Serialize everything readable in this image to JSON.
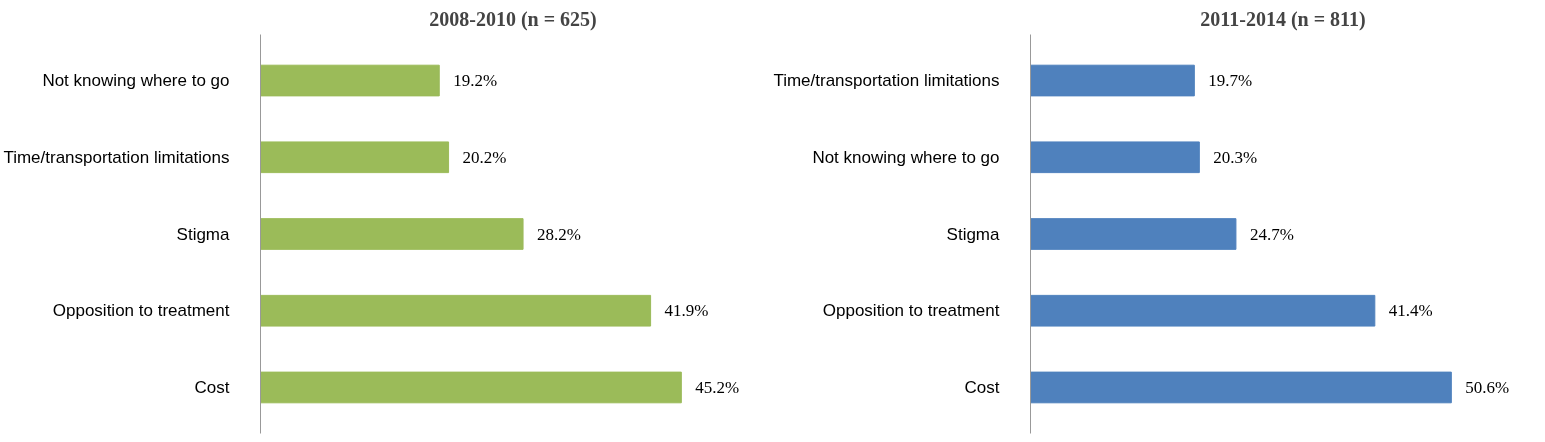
{
  "chart_data": [
    {
      "type": "bar",
      "orientation": "horizontal",
      "title": "2008-2010 (n = 625)",
      "categories": [
        "Not knowing where to go",
        "Time/transportation limitations",
        "Stigma",
        "Opposition to treatment",
        "Cost"
      ],
      "values": [
        19.2,
        20.2,
        28.2,
        41.9,
        45.2
      ],
      "color": "#9bbb59",
      "value_labels": [
        "19.2%",
        "20.2%",
        "28.2%",
        "41.9%",
        "45.2%"
      ]
    },
    {
      "type": "bar",
      "orientation": "horizontal",
      "title": "2011-2014 (n = 811)",
      "categories": [
        "Time/transportation limitations",
        "Not knowing where to go",
        "Stigma",
        "Opposition to treatment",
        "Cost"
      ],
      "values": [
        19.7,
        20.3,
        24.7,
        41.4,
        50.6
      ],
      "color": "#4f81bd",
      "value_labels": [
        "19.7%",
        "20.3%",
        "24.7%",
        "41.4%",
        "50.6%"
      ]
    }
  ]
}
